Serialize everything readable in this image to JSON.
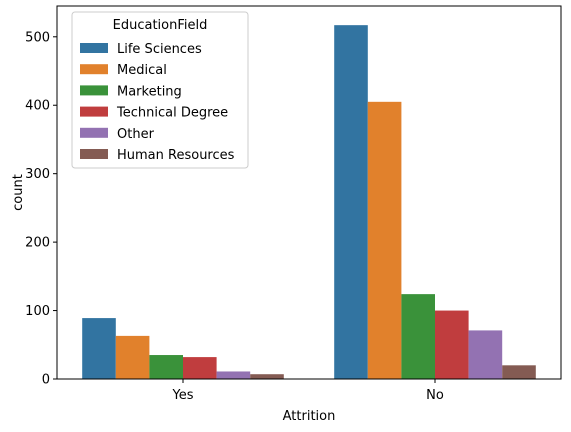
{
  "chart_data": {
    "type": "bar",
    "categories": [
      "Yes",
      "No"
    ],
    "xlabel": "Attrition",
    "ylabel": "count",
    "ylim": [
      0,
      545
    ],
    "yticks": [
      0,
      100,
      200,
      300,
      400,
      500
    ],
    "grid": false,
    "legend": {
      "title": "EducationField",
      "placement": "top-left"
    },
    "series": [
      {
        "name": "Life Sciences",
        "color": "#3274a1",
        "values": [
          89,
          517
        ]
      },
      {
        "name": "Medical",
        "color": "#e1812c",
        "values": [
          63,
          405
        ]
      },
      {
        "name": "Marketing",
        "color": "#3a923a",
        "values": [
          35,
          124
        ]
      },
      {
        "name": "Technical Degree",
        "color": "#c03d3e",
        "values": [
          32,
          100
        ]
      },
      {
        "name": "Other",
        "color": "#9372b2",
        "values": [
          11,
          71
        ]
      },
      {
        "name": "Human Resources",
        "color": "#845b53",
        "values": [
          7,
          20
        ]
      }
    ]
  }
}
